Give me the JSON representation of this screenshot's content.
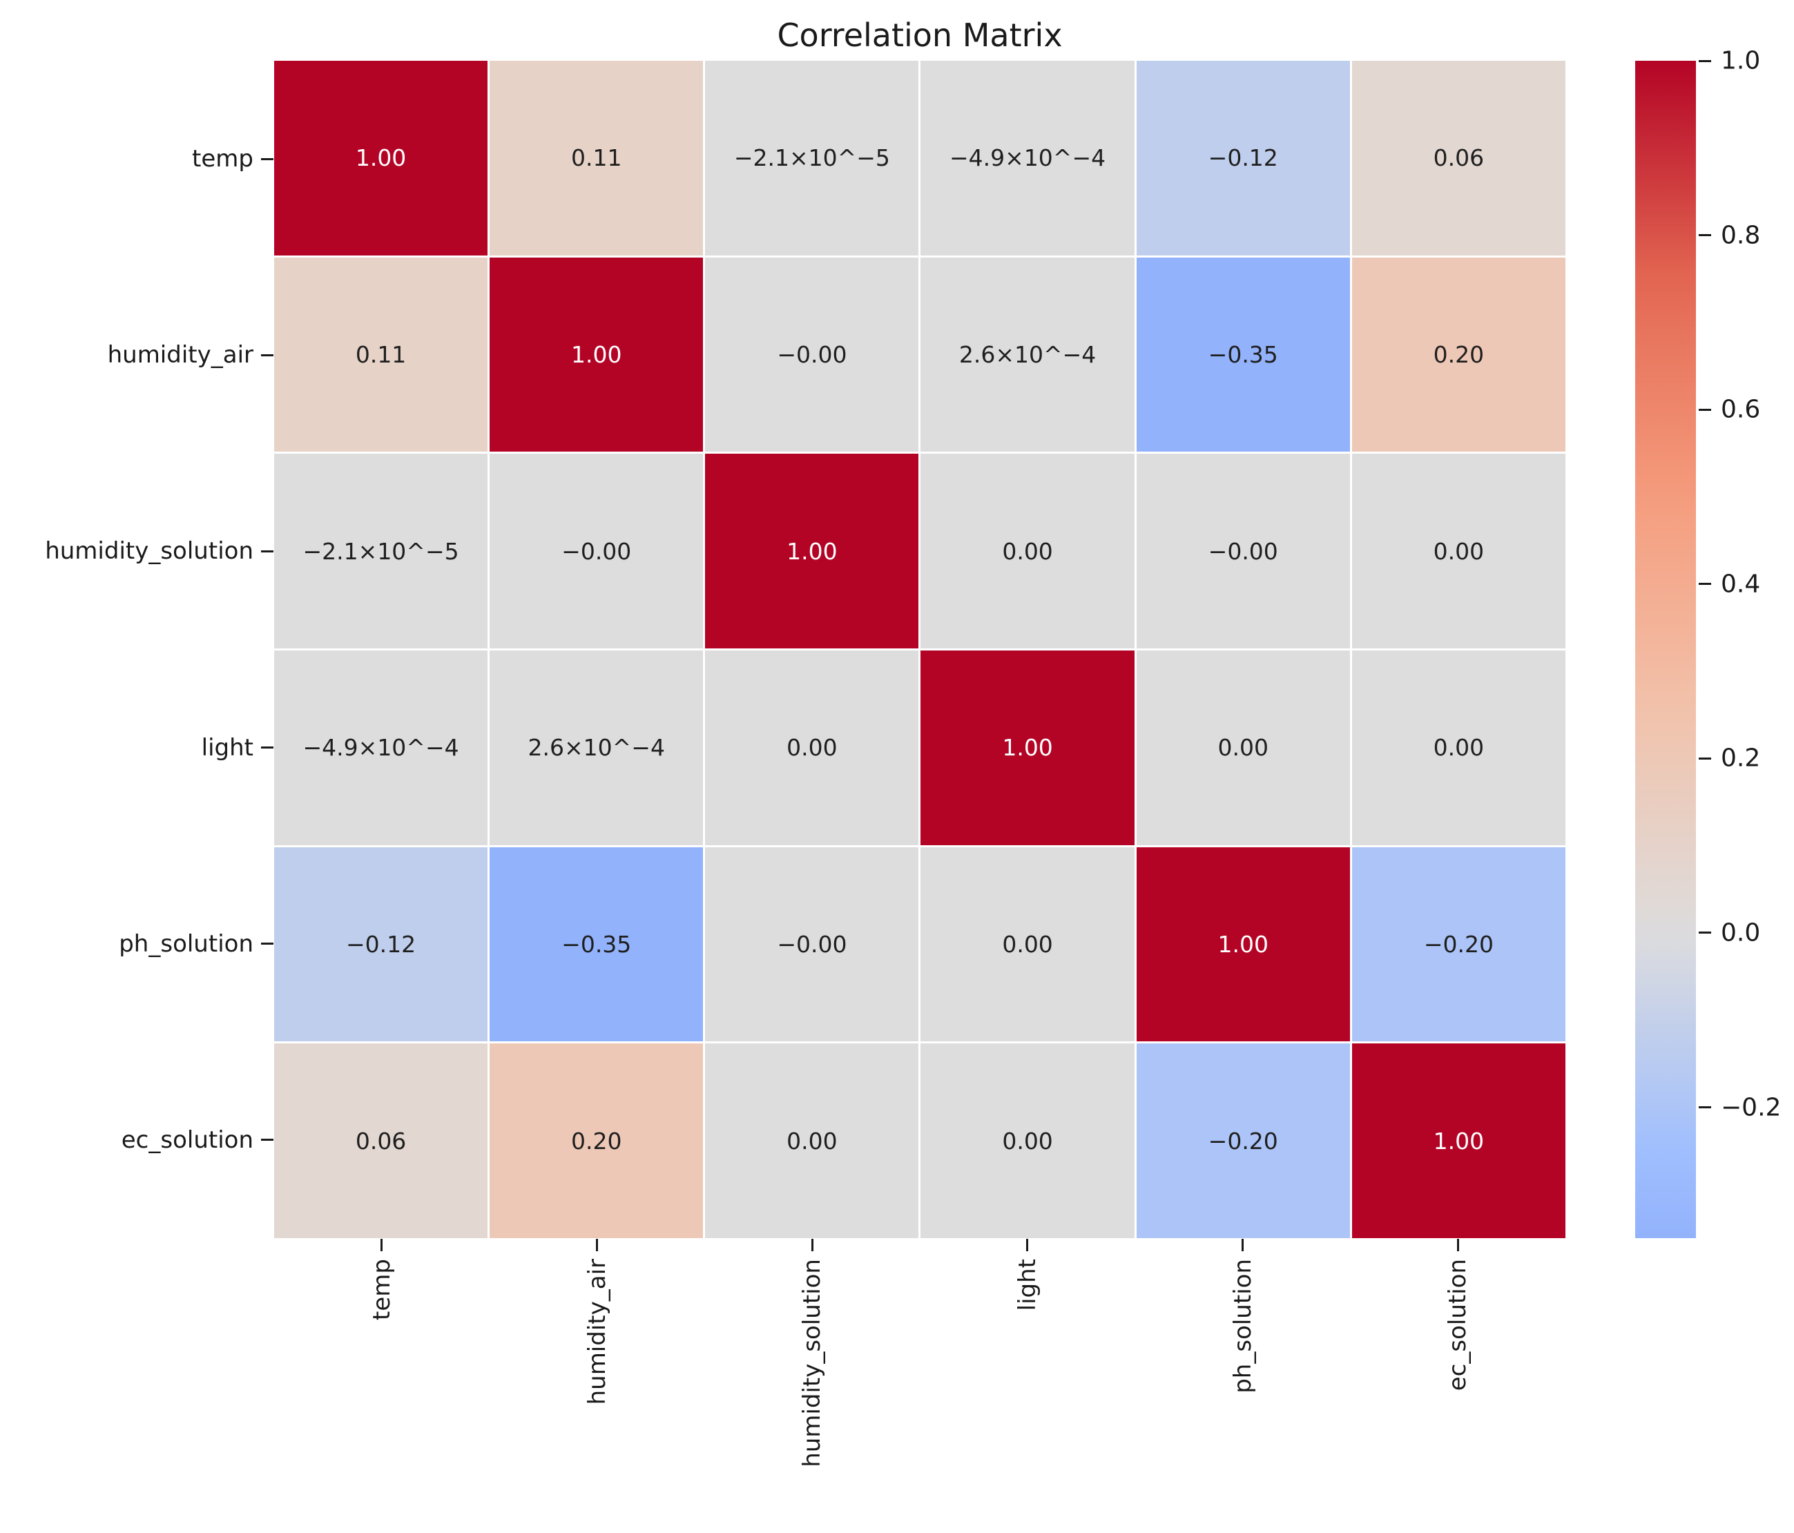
{
  "title": "Correlation Matrix",
  "colors": {
    "background": "#ffffff",
    "max_red": "#b40426",
    "mid_gray": "#dddddd",
    "min_blue_at_vmin": "#9db5fb",
    "annotation_dark": "#1f1f1f",
    "annotation_light": "#ffffff",
    "tick_color": "#1a1a1a"
  },
  "chart_data": {
    "type": "heatmap",
    "title": "Correlation Matrix",
    "categories": [
      "temp",
      "humidity_air",
      "humidity_solution",
      "light",
      "ph_solution",
      "ec_solution"
    ],
    "x_tick_labels": [
      "temp",
      "humidity_air",
      "humidity_solution",
      "light",
      "ph_solution",
      "ec_solution"
    ],
    "y_tick_labels": [
      "temp",
      "humidity_air",
      "humidity_solution",
      "light",
      "ph_solution",
      "ec_solution"
    ],
    "values": [
      [
        1.0,
        0.11,
        -2.1e-05,
        -0.00049,
        -0.12,
        0.06
      ],
      [
        0.11,
        1.0,
        -0.0,
        0.00026,
        -0.35,
        0.2
      ],
      [
        -2.1e-05,
        -0.0,
        1.0,
        0.0,
        -0.0,
        0.0
      ],
      [
        -0.00049,
        0.00026,
        0.0,
        1.0,
        0.0,
        0.0
      ],
      [
        -0.12,
        -0.35,
        -0.0,
        0.0,
        1.0,
        -0.2
      ],
      [
        0.06,
        0.2,
        0.0,
        0.0,
        -0.2,
        1.0
      ]
    ],
    "cell_labels": [
      [
        "1.00",
        "0.11",
        "−2.1×10^−5",
        "−4.9×10^−4",
        "−0.12",
        "0.06"
      ],
      [
        "0.11",
        "1.00",
        "−0.00",
        "2.6×10^−4",
        "−0.35",
        "0.20"
      ],
      [
        "−2.1×10^−5",
        "−0.00",
        "1.00",
        "0.00",
        "−0.00",
        "0.00"
      ],
      [
        "−4.9×10^−4",
        "2.6×10^−4",
        "0.00",
        "1.00",
        "0.00",
        "0.00"
      ],
      [
        "−0.12",
        "−0.35",
        "−0.00",
        "0.00",
        "1.00",
        "−0.20"
      ],
      [
        "0.06",
        "0.20",
        "0.00",
        "0.00",
        "−0.20",
        "1.00"
      ]
    ],
    "colormap": "coolwarm",
    "color_center": 0,
    "color_half_range": 1.0,
    "grid": false,
    "colorbar": {
      "position": "right",
      "vmax": 1.0,
      "vmin": -0.35,
      "ticks": [
        1.0,
        0.8,
        0.6,
        0.4,
        0.2,
        0.0,
        -0.2
      ],
      "tick_labels": [
        "1.0",
        "0.8",
        "0.6",
        "0.4",
        "0.2",
        "0.0",
        "−0.2"
      ]
    }
  }
}
